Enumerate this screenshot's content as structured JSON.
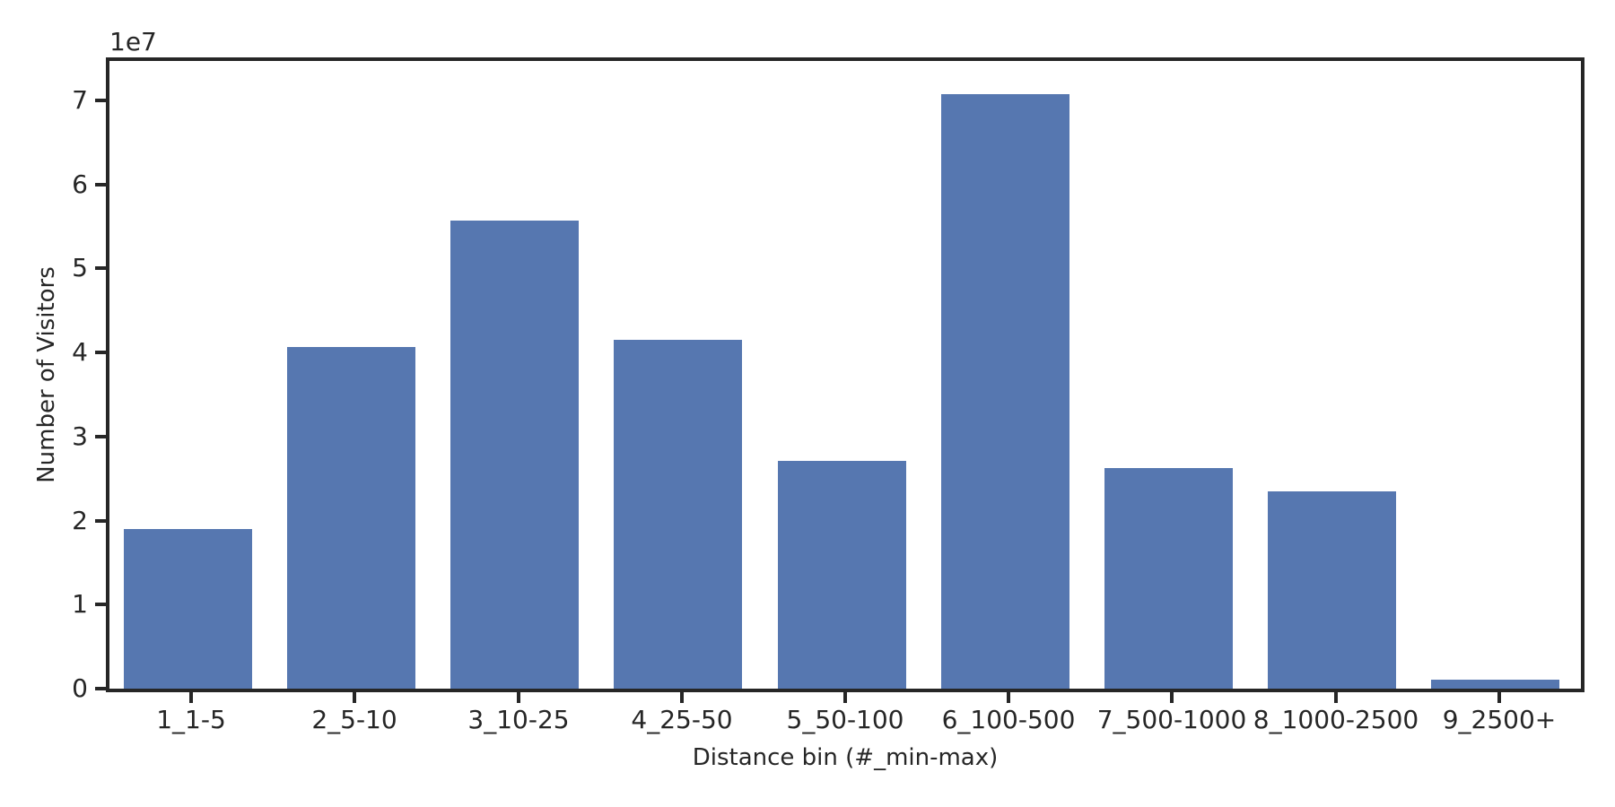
{
  "chart_data": {
    "type": "bar",
    "title": "",
    "xlabel": "Distance bin (#_min-max)",
    "ylabel": "Number of Visitors",
    "y_offset_label": "1e7",
    "categories": [
      "1_1-5",
      "2_5-10",
      "3_10-25",
      "4_25-50",
      "5_50-100",
      "6_100-500",
      "7_500-1000",
      "8_1000-2500",
      "9_2500+"
    ],
    "values": [
      19000000,
      40600000,
      55700000,
      41500000,
      27100000,
      70700000,
      26200000,
      23500000,
      1100000
    ],
    "yticks": [
      0,
      1,
      2,
      3,
      4,
      5,
      6,
      7
    ],
    "ytick_unit": 10000000,
    "ylim": [
      0,
      74666667
    ],
    "bar_color": "#5677B0",
    "axis_color": "#262626",
    "background_color": "#ffffff",
    "grid": false,
    "legend_position": "none"
  }
}
